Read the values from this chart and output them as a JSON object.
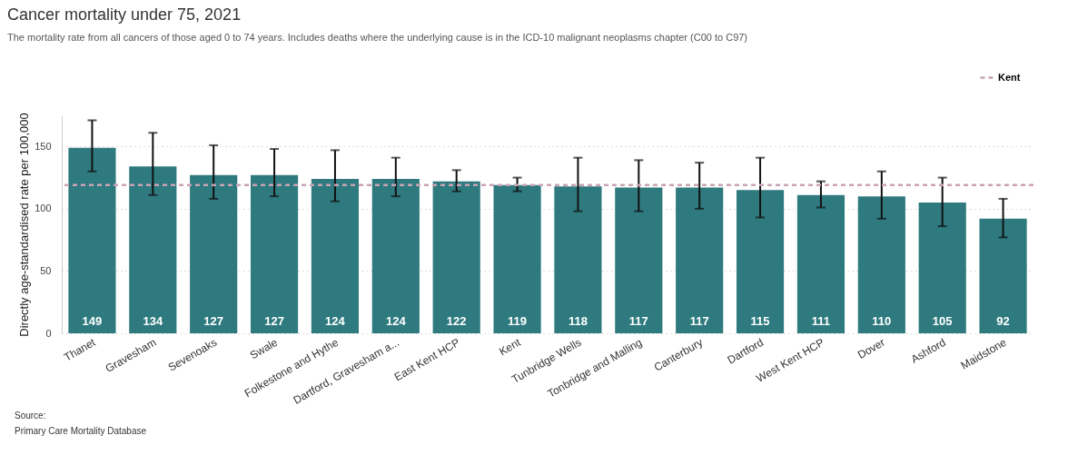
{
  "chart_data": {
    "type": "bar",
    "title": "Cancer mortality under 75, 2021",
    "subtitle": "The mortality rate from all cancers of those aged 0 to 74 years. Includes deaths where the underlying cause is in the ICD-10 malignant neoplasms chapter (C00 to C97)",
    "ylabel": "Directly age-standardised rate per 100,000",
    "categories": [
      "Thanet",
      "Gravesham",
      "Sevenoaks",
      "Swale",
      "Folkestone and Hythe",
      "Dartford, Gravesham a...",
      "East Kent HCP",
      "Kent",
      "Tunbridge Wells",
      "Tonbridge and Malling",
      "Canterbury",
      "Dartford",
      "West Kent HCP",
      "Dover",
      "Ashford",
      "Maidstone"
    ],
    "values": [
      149,
      134,
      127,
      127,
      124,
      124,
      122,
      119,
      118,
      117,
      117,
      115,
      111,
      110,
      105,
      92
    ],
    "errors": [
      [
        130,
        171
      ],
      [
        111,
        161
      ],
      [
        108,
        151
      ],
      [
        110,
        148
      ],
      [
        106,
        147
      ],
      [
        110,
        141
      ],
      [
        114,
        131
      ],
      [
        114,
        125
      ],
      [
        98,
        141
      ],
      [
        98,
        139
      ],
      [
        100,
        137
      ],
      [
        93,
        141
      ],
      [
        101,
        122
      ],
      [
        92,
        130
      ],
      [
        86,
        125
      ],
      [
        77,
        108
      ]
    ],
    "color": "#2e7a7f",
    "data_labels": true,
    "ylim": [
      0,
      175
    ],
    "yticks": [
      0,
      50,
      100,
      150
    ],
    "grid": "y",
    "ref_lines": [
      {
        "axis": "y",
        "value": 119,
        "label": "Kent",
        "color": "#c9a3b5",
        "line_style": "dashed"
      }
    ],
    "legend": "top right",
    "annotations": [
      "Source:",
      "Primary Care Mortality Database"
    ]
  }
}
